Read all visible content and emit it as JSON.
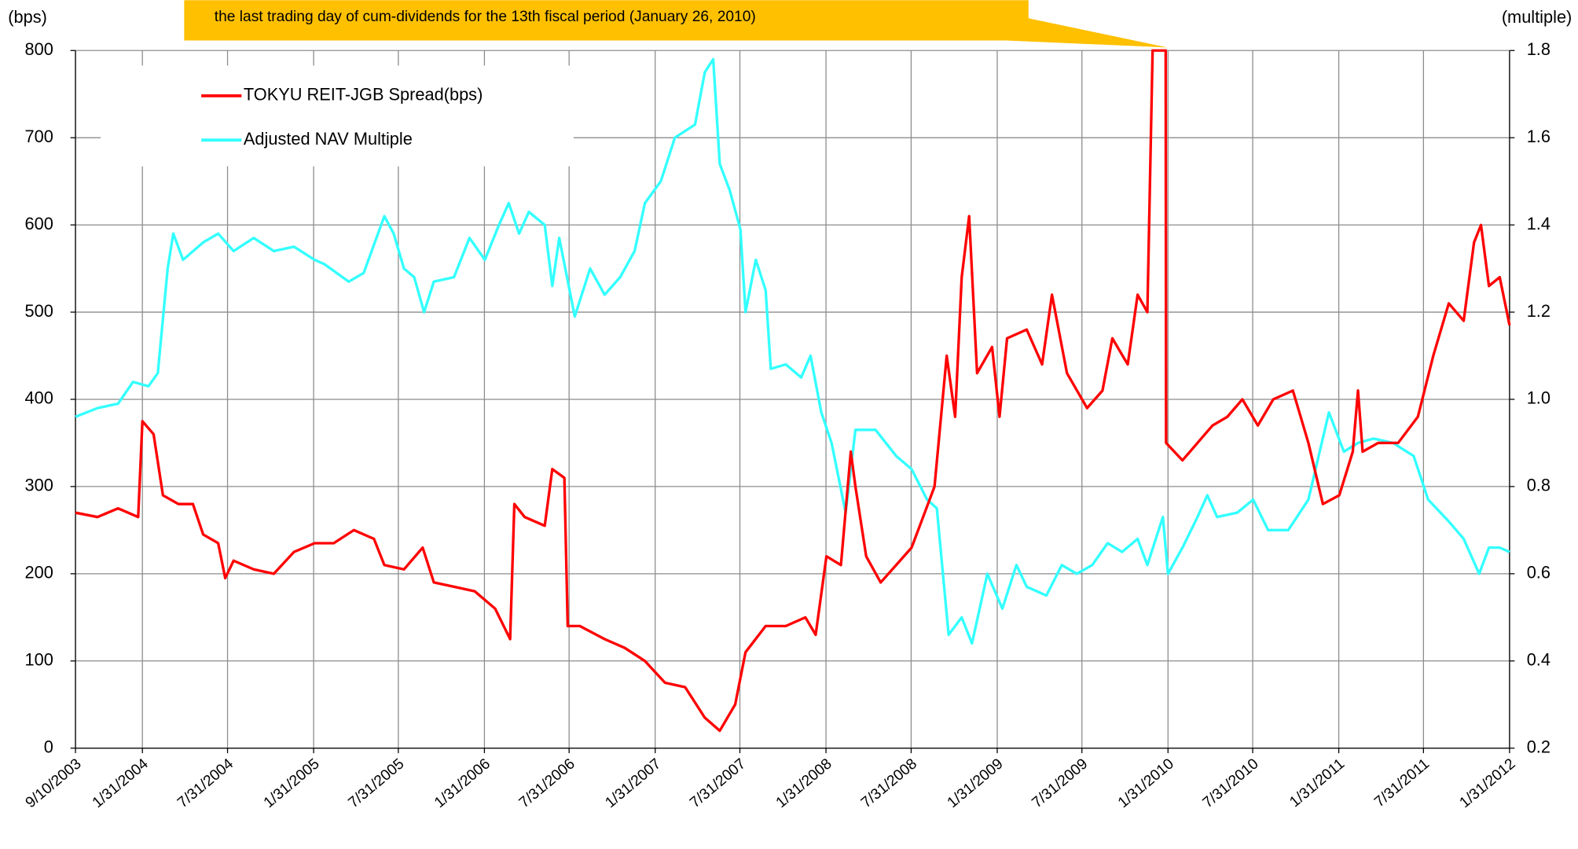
{
  "chart_data": {
    "type": "line",
    "annotation": "the last trading day of cum-dividends for the 13th fiscal period (January 26, 2010)",
    "ylabel": "(bps)",
    "y2label": "(multiple)",
    "xlim": [
      "9/10/2003",
      "1/31/2012"
    ],
    "xticks": [
      "9/10/2003",
      "1/31/2004",
      "7/31/2004",
      "1/31/2005",
      "7/31/2005",
      "1/31/2006",
      "7/31/2006",
      "1/31/2007",
      "7/31/2007",
      "1/31/2008",
      "7/31/2008",
      "1/31/2009",
      "7/31/2009",
      "1/31/2010",
      "7/31/2010",
      "1/31/2011",
      "7/31/2011",
      "1/31/2012"
    ],
    "ylim": [
      0,
      800
    ],
    "yticks": [
      0,
      100,
      200,
      300,
      400,
      500,
      600,
      700,
      800
    ],
    "y2lim": [
      0.2,
      1.8
    ],
    "y2ticks": [
      0.2,
      0.4,
      0.6,
      0.8,
      {
        "value": 1,
        "label": "1.0"
      },
      1.2,
      1.4,
      1.6,
      1.8
    ],
    "grid": true,
    "legend": "upper left",
    "series": [
      {
        "name": "TOKYU REIT-JGB Spread(bps)",
        "color": "#ff0000",
        "x": [
          "9/10/2003",
          "10/27/2003",
          "12/10/2003",
          "1/22/2004",
          "1/31/2004",
          "2/24/2004",
          "3/15/2004",
          "4/17/2004",
          "5/18/2004",
          "6/9/2004",
          "7/11/2004",
          "7/26/2004",
          "8/13/2004",
          "9/25/2004",
          "11/7/2004",
          "12/20/2004",
          "2/2/2005",
          "3/15/2005",
          "4/27/2005",
          "6/9/2005",
          "7/1/2005",
          "8/12/2005",
          "9/21/2005",
          "10/15/2005",
          "11/27/2005",
          "1/10/2006",
          "2/23/2006",
          "3/27/2006",
          "4/5/2006",
          "4/27/2006",
          "6/9/2006",
          "6/25/2006",
          "7/21/2006",
          "7/28/2006",
          "8/23/2006",
          "10/15/2006",
          "11/27/2006",
          "1/9/2007",
          "2/21/2007",
          "4/5/2007",
          "5/17/2007",
          "6/18/2007",
          "7/21/2007",
          "8/12/2007",
          "9/24/2007",
          "11/6/2007",
          "12/18/2007",
          "1/9/2008",
          "2/1/2008",
          "3/3/2008",
          "3/24/2008",
          "4/3/2008",
          "4/26/2008",
          "5/27/2008",
          "6/29/2008",
          "8/1/2008",
          "8/22/2008",
          "9/19/2008",
          "10/15/2008",
          "11/2/2008",
          "11/16/2008",
          "12/2/2008",
          "12/19/2008",
          "1/20/2009",
          "2/5/2009",
          "2/21/2009",
          "4/4/2009",
          "5/7/2009",
          "5/28/2009",
          "6/29/2009",
          "8/11/2009",
          "9/13/2009",
          "10/4/2009",
          "11/6/2009",
          "11/27/2009",
          "12/18/2009",
          "12/29/2009",
          "1/26/2010",
          "1/27/2010",
          "3/3/2010",
          "4/4/2010",
          "5/6/2010",
          "6/7/2010",
          "7/9/2010",
          "8/11/2010",
          "9/13/2010",
          "10/25/2010",
          "11/27/2010",
          "12/28/2010",
          "2/1/2011",
          "3/2/2011",
          "3/13/2011",
          "3/23/2011",
          "4/25/2011",
          "6/7/2011",
          "7/19/2011",
          "8/21/2011",
          "9/23/2011",
          "10/25/2011",
          "11/16/2011",
          "12/1/2011",
          "12/18/2011",
          "1/10/2012",
          "1/31/2012"
        ],
        "values": [
          270,
          265,
          275,
          265,
          375,
          360,
          290,
          280,
          280,
          245,
          235,
          195,
          215,
          205,
          200,
          225,
          235,
          235,
          250,
          240,
          210,
          205,
          230,
          190,
          185,
          180,
          160,
          125,
          280,
          265,
          255,
          320,
          310,
          140,
          140,
          125,
          115,
          100,
          75,
          70,
          35,
          20,
          50,
          110,
          140,
          140,
          150,
          130,
          220,
          210,
          340,
          300,
          220,
          190,
          210,
          230,
          260,
          300,
          450,
          380,
          540,
          610,
          430,
          460,
          380,
          470,
          480,
          440,
          520,
          430,
          390,
          410,
          470,
          440,
          520,
          500,
          800,
          800,
          350,
          330,
          350,
          370,
          380,
          400,
          370,
          400,
          410,
          350,
          280,
          290,
          340,
          410,
          340,
          350,
          350,
          380,
          450,
          510,
          490,
          580,
          600,
          530,
          540,
          485
        ]
      },
      {
        "name": "Adjusted NAV Multiple",
        "color": "#33ffff",
        "axis": "y2",
        "x": [
          "9/10/2003",
          "10/27/2003",
          "12/10/2003",
          "1/11/2004",
          "2/13/2004",
          "3/4/2004",
          "3/25/2004",
          "4/6/2004",
          "4/27/2004",
          "6/9/2004",
          "7/11/2004",
          "8/13/2004",
          "9/25/2004",
          "11/7/2004",
          "12/20/2004",
          "2/2/2005",
          "2/23/2005",
          "4/16/2005",
          "5/18/2005",
          "7/1/2005",
          "7/21/2005",
          "8/12/2005",
          "9/3/2005",
          "9/24/2005",
          "10/15/2005",
          "11/27/2005",
          "12/30/2005",
          "2/1/2006",
          "3/3/2006",
          "3/24/2006",
          "4/15/2006",
          "5/6/2006",
          "6/9/2006",
          "6/25/2006",
          "7/10/2006",
          "8/12/2006",
          "9/14/2006",
          "10/15/2006",
          "11/17/2006",
          "12/18/2006",
          "1/9/2007",
          "2/12/2007",
          "3/14/2007",
          "4/26/2007",
          "5/17/2007",
          "6/4/2007",
          "6/18/2007",
          "7/9/2007",
          "8/1/2007",
          "8/12/2007",
          "9/3/2007",
          "9/24/2007",
          "10/5/2007",
          "11/6/2007",
          "12/9/2007",
          "12/29/2007",
          "1/21/2008",
          "2/12/2008",
          "3/13/2008",
          "4/3/2008",
          "5/16/2008",
          "6/29/2008",
          "8/1/2008",
          "9/3/2008",
          "9/24/2008",
          "10/19/2008",
          "11/16/2008",
          "12/8/2008",
          "1/10/2009",
          "2/11/2009",
          "3/13/2009",
          "4/4/2009",
          "5/16/2009",
          "6/18/2009",
          "7/20/2009",
          "8/22/2009",
          "9/24/2009",
          "10/25/2009",
          "11/27/2009",
          "12/18/2009",
          "1/20/2010",
          "1/31/2010",
          "3/3/2010",
          "4/4/2010",
          "4/25/2010",
          "5/16/2010",
          "6/28/2010",
          "8/1/2010",
          "9/2/2010",
          "10/15/2010",
          "11/27/2010",
          "1/10/2011",
          "2/11/2011",
          "3/13/2011",
          "4/15/2011",
          "5/27/2011",
          "7/10/2011",
          "8/10/2011",
          "9/23/2011",
          "10/25/2011",
          "11/27/2011",
          "12/18/2011",
          "1/10/2012",
          "1/31/2012"
        ],
        "values": [
          0.96,
          0.98,
          0.99,
          1.04,
          1.03,
          1.06,
          1.3,
          1.38,
          1.32,
          1.36,
          1.38,
          1.34,
          1.37,
          1.34,
          1.35,
          1.32,
          1.31,
          1.27,
          1.29,
          1.42,
          1.38,
          1.3,
          1.28,
          1.2,
          1.27,
          1.28,
          1.37,
          1.32,
          1.4,
          1.45,
          1.38,
          1.43,
          1.4,
          1.26,
          1.37,
          1.19,
          1.3,
          1.24,
          1.28,
          1.34,
          1.45,
          1.5,
          1.6,
          1.63,
          1.75,
          1.78,
          1.54,
          1.48,
          1.39,
          1.2,
          1.32,
          1.25,
          1.07,
          1.08,
          1.05,
          1.1,
          0.97,
          0.9,
          0.74,
          0.93,
          0.93,
          0.87,
          0.84,
          0.77,
          0.75,
          0.46,
          0.5,
          0.44,
          0.6,
          0.52,
          0.62,
          0.57,
          0.55,
          0.62,
          0.6,
          0.62,
          0.67,
          0.65,
          0.68,
          0.62,
          0.73,
          0.6,
          0.66,
          0.73,
          0.78,
          0.73,
          0.74,
          0.77,
          0.7,
          0.7,
          0.77,
          0.97,
          0.88,
          0.9,
          0.91,
          0.9,
          0.87,
          0.77,
          0.72,
          0.68,
          0.6,
          0.66,
          0.66,
          0.65
        ]
      }
    ]
  }
}
